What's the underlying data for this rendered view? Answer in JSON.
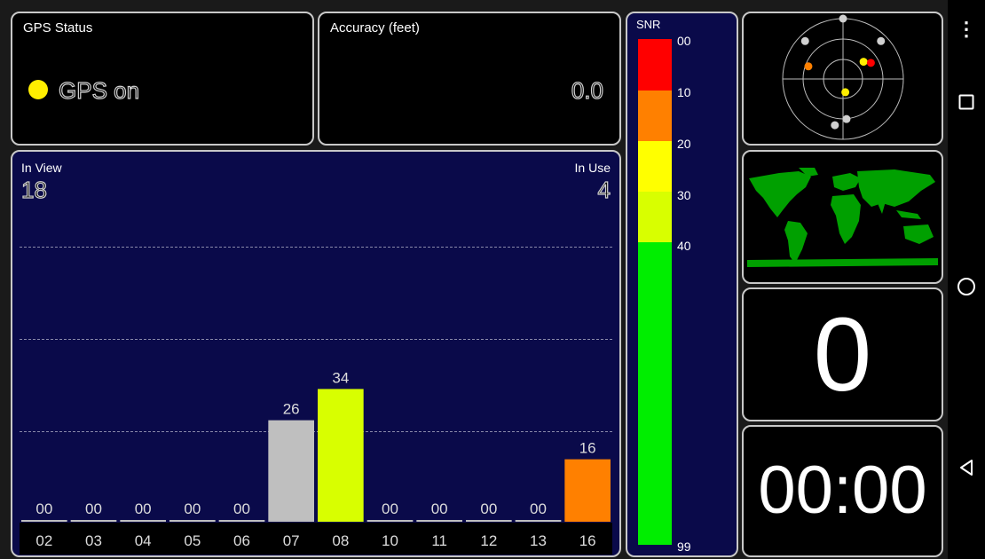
{
  "gps_status": {
    "title": "GPS Status",
    "status_text": "GPS on",
    "dot_color": "#ffee00"
  },
  "accuracy": {
    "title": "Accuracy (feet)",
    "value": "0.0"
  },
  "snr_chart": {
    "in_view_label": "In View",
    "in_view_count": "18",
    "in_use_label": "In Use",
    "in_use_count": "4"
  },
  "chart_data": {
    "type": "bar",
    "categories": [
      "02",
      "03",
      "04",
      "05",
      "06",
      "07",
      "08",
      "10",
      "11",
      "12",
      "13",
      "16"
    ],
    "values": [
      0,
      0,
      0,
      0,
      0,
      26,
      34,
      0,
      0,
      0,
      0,
      16
    ],
    "value_labels": [
      "00",
      "00",
      "00",
      "00",
      "00",
      "26",
      "34",
      "00",
      "00",
      "00",
      "00",
      "16"
    ],
    "bar_colors": [
      "#bfbfbf",
      "#bfbfbf",
      "#bfbfbf",
      "#bfbfbf",
      "#bfbfbf",
      "#bfbfbf",
      "#d8ff00",
      "#bfbfbf",
      "#bfbfbf",
      "#bfbfbf",
      "#bfbfbf",
      "#ff8000"
    ],
    "title": "",
    "xlabel": "",
    "ylabel": "",
    "ylim": [
      0,
      60
    ],
    "grid": true
  },
  "snr_legend": {
    "title": "SNR",
    "ticks": [
      "00",
      "10",
      "20",
      "30",
      "40",
      "99"
    ],
    "band_colors": [
      "#ff0000",
      "#ff8000",
      "#ffff00",
      "#d8ff00",
      "#00ee00"
    ]
  },
  "sky_view": {
    "satellites": [
      {
        "az": 0,
        "el": 0,
        "color": "#d0d0d0"
      },
      {
        "az": 315,
        "el": 10,
        "color": "#d0d0d0"
      },
      {
        "az": 45,
        "el": 10,
        "color": "#d0d0d0"
      },
      {
        "az": 290,
        "el": 35,
        "color": "#ff8000"
      },
      {
        "az": 50,
        "el": 50,
        "color": "#ffee00"
      },
      {
        "az": 60,
        "el": 42,
        "color": "#ff0000"
      },
      {
        "az": 170,
        "el": 70,
        "color": "#ffee00"
      },
      {
        "az": 175,
        "el": 30,
        "color": "#d0d0d0"
      },
      {
        "az": 190,
        "el": 20,
        "color": "#d0d0d0"
      }
    ]
  },
  "world_map": {
    "land_color": "#00a000"
  },
  "satellites_in_use": {
    "value": "0"
  },
  "timer": {
    "value": "00:00"
  },
  "navigation": {
    "menu_icon": "more-vert-icon",
    "recents_icon": "recents-icon",
    "home_icon": "home-icon",
    "back_icon": "back-icon"
  }
}
